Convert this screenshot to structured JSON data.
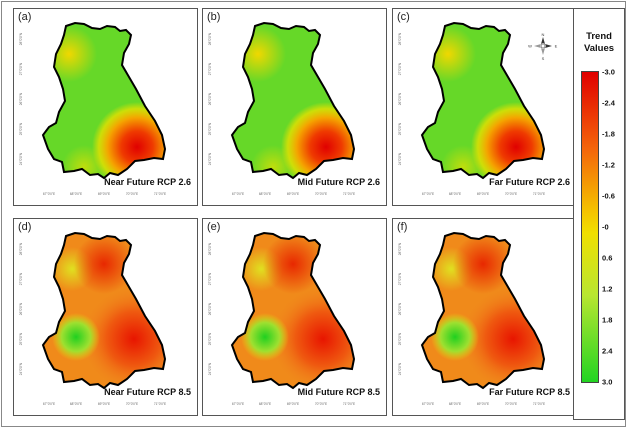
{
  "panels": [
    {
      "letter": "(a)",
      "title": "Near Future RCP 2.6",
      "scenario": "rcp26"
    },
    {
      "letter": "(b)",
      "title": "Mid Future RCP 2.6",
      "scenario": "rcp26"
    },
    {
      "letter": "(c)",
      "title": "Far Future RCP 2.6",
      "scenario": "rcp26"
    },
    {
      "letter": "(d)",
      "title": "Near Future RCP 8.5",
      "scenario": "rcp85"
    },
    {
      "letter": "(e)",
      "title": "Mid Future RCP 8.5",
      "scenario": "rcp85"
    },
    {
      "letter": "(f)",
      "title": "Far Future RCP 8.5",
      "scenario": "rcp85"
    }
  ],
  "axis_ticks": {
    "lon": [
      "67°0'0\"E",
      "68°0'0\"E",
      "69°0'0\"E",
      "70°0'0\"E",
      "71°0'0\"E"
    ],
    "lat": [
      "28°0'0\"N",
      "27°0'0\"N",
      "26°0'0\"N",
      "25°0'0\"N",
      "24°0'0\"N"
    ]
  },
  "north_arrow": {
    "labels": [
      "N",
      "E",
      "S",
      "W"
    ]
  },
  "legend": {
    "title_line1": "Trend",
    "title_line2": "Values",
    "ticks": [
      "-3.0",
      "-2.4",
      "-1.8",
      "-1.2",
      "-0.6",
      "-0",
      "0.6",
      "1.2",
      "1.8",
      "2.4",
      "3.0"
    ]
  },
  "colors": {
    "high_trend": "#e00000",
    "mid_trend": "#f0e000",
    "low_trend": "#22d422"
  }
}
